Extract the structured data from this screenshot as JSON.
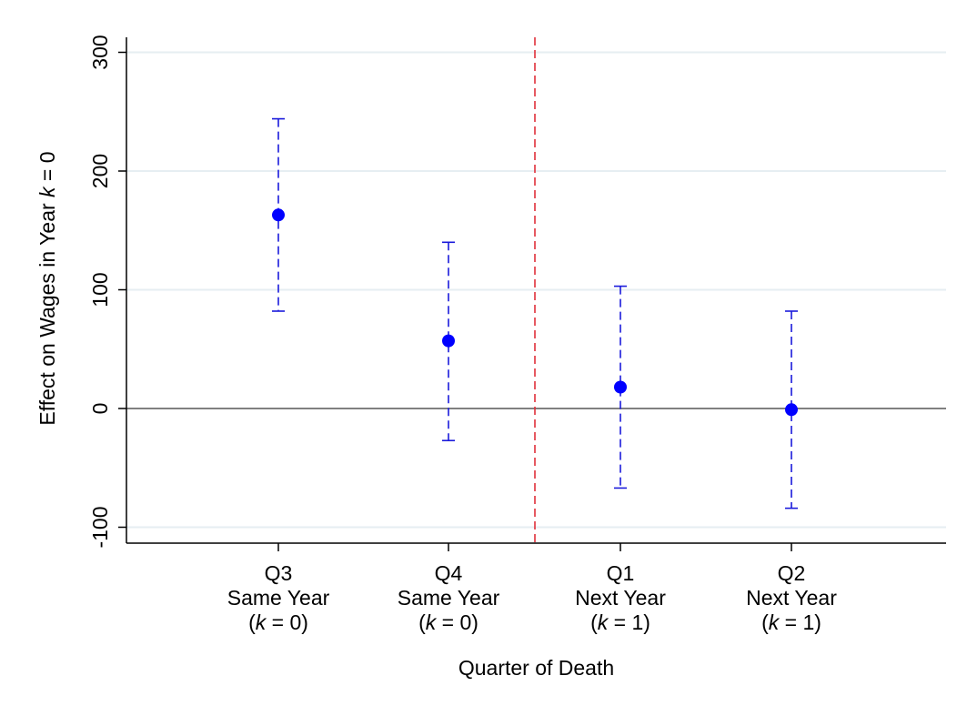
{
  "chart_data": {
    "type": "scatter",
    "subtype": "point-estimate-with-confidence-intervals",
    "categories": [
      {
        "line1": "Q3",
        "line2": "Same Year",
        "k_value": "0"
      },
      {
        "line1": "Q4",
        "line2": "Same Year",
        "k_value": "0"
      },
      {
        "line1": "Q1",
        "line2": "Next Year",
        "k_value": "1"
      },
      {
        "line1": "Q2",
        "line2": "Next Year",
        "k_value": "1"
      }
    ],
    "estimates": [
      163,
      57,
      18,
      -1
    ],
    "ci_upper": [
      244,
      140,
      103,
      82
    ],
    "ci_lower": [
      82,
      -27,
      -67,
      -84
    ],
    "xlabel": "Quarter of Death",
    "ylabel": {
      "prefix": "Effect on Wages in Year ",
      "var": "k",
      "suffix": " = 0"
    },
    "yticks": [
      -100,
      0,
      100,
      200,
      300
    ],
    "ylim": [
      -112,
      312
    ],
    "reference_line_y": 0,
    "vertical_divider": "between Q4 and Q1",
    "grid": true,
    "colors": {
      "point": "#0000ff",
      "ci": "#1a1adb",
      "divider": "#e0303a",
      "zero_line": "#808080",
      "grid": "#e6eef2"
    }
  }
}
